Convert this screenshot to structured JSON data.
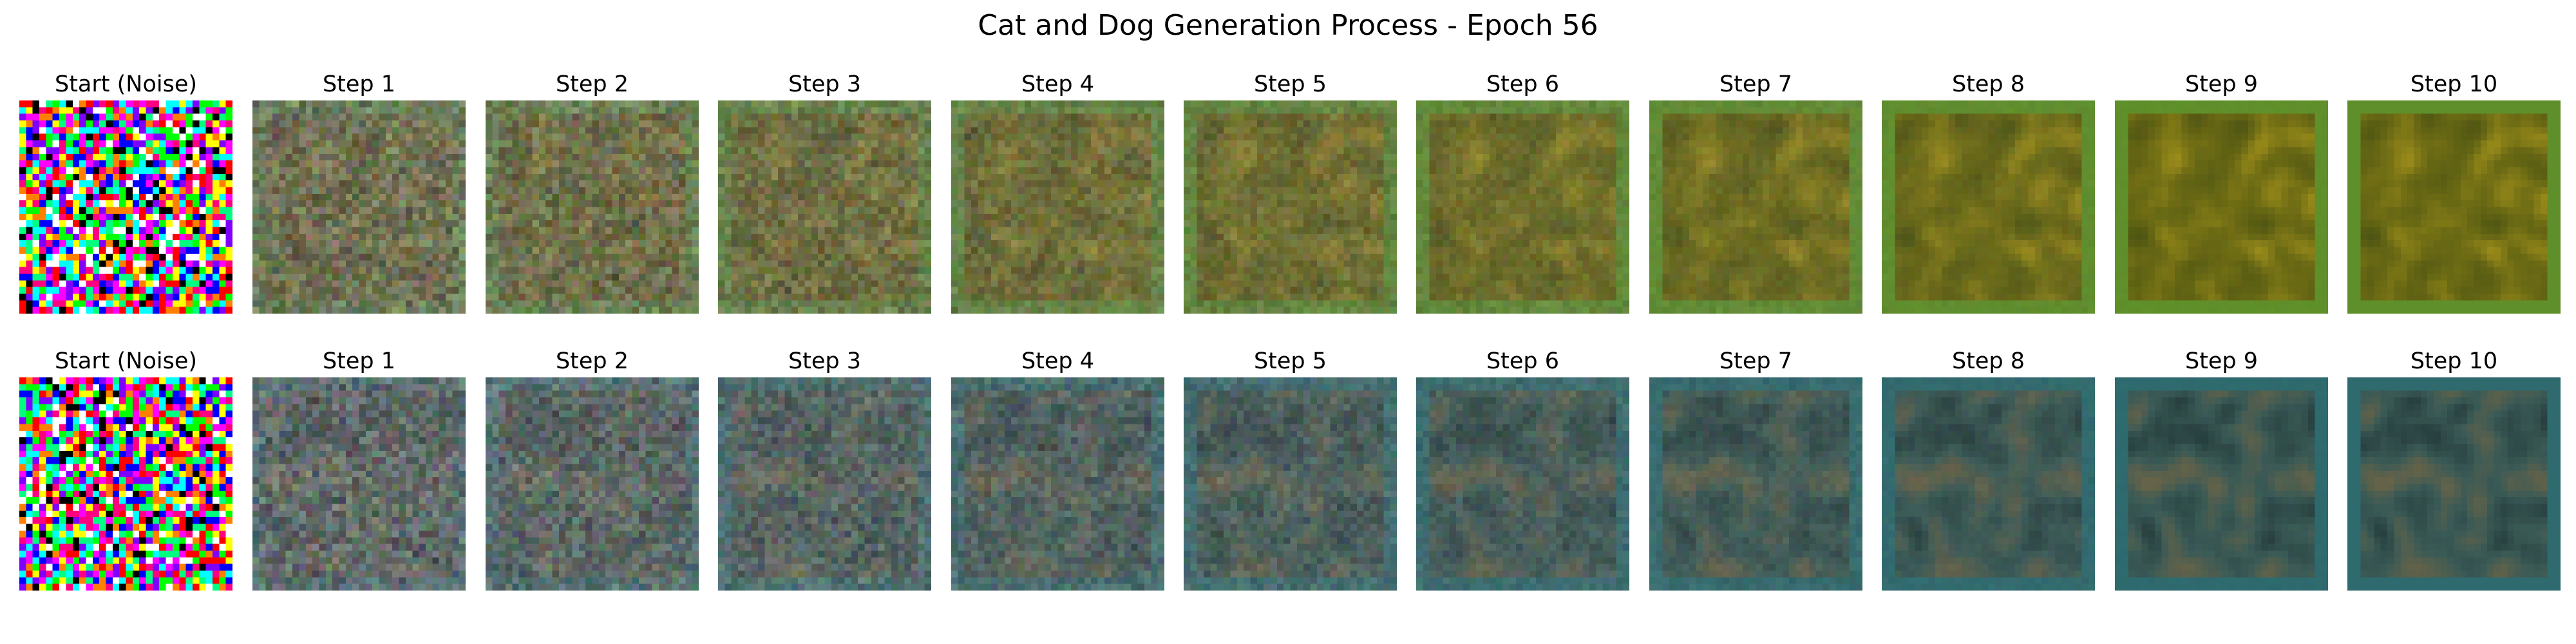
{
  "title": "Cat and Dog Generation Process - Epoch 56",
  "rows": [
    {
      "panels": [
        {
          "label": "Start (Noise)",
          "kind": "noise",
          "denoise": 0.0
        },
        {
          "label": "Step 1",
          "kind": "blend",
          "denoise": 0.1
        },
        {
          "label": "Step 2",
          "kind": "blend",
          "denoise": 0.2
        },
        {
          "label": "Step 3",
          "kind": "blend",
          "denoise": 0.3
        },
        {
          "label": "Step 4",
          "kind": "blend",
          "denoise": 0.4
        },
        {
          "label": "Step 5",
          "kind": "blend",
          "denoise": 0.5
        },
        {
          "label": "Step 6",
          "kind": "blend",
          "denoise": 0.6
        },
        {
          "label": "Step 7",
          "kind": "blend",
          "denoise": 0.7
        },
        {
          "label": "Step 8",
          "kind": "blend",
          "denoise": 0.8
        },
        {
          "label": "Step 9",
          "kind": "blend",
          "denoise": 0.9
        },
        {
          "label": "Step 10",
          "kind": "blend",
          "denoise": 1.0
        }
      ],
      "palette": {
        "dominant": "#6b6a14",
        "border": "#5f8f2a",
        "highlight": "#b8a01e",
        "shadow": "#3f4a12"
      }
    },
    {
      "panels": [
        {
          "label": "Start (Noise)",
          "kind": "noise",
          "denoise": 0.0
        },
        {
          "label": "Step 1",
          "kind": "blend",
          "denoise": 0.1
        },
        {
          "label": "Step 2",
          "kind": "blend",
          "denoise": 0.2
        },
        {
          "label": "Step 3",
          "kind": "blend",
          "denoise": 0.3
        },
        {
          "label": "Step 4",
          "kind": "blend",
          "denoise": 0.4
        },
        {
          "label": "Step 5",
          "kind": "blend",
          "denoise": 0.5
        },
        {
          "label": "Step 6",
          "kind": "blend",
          "denoise": 0.6
        },
        {
          "label": "Step 7",
          "kind": "blend",
          "denoise": 0.7
        },
        {
          "label": "Step 8",
          "kind": "blend",
          "denoise": 0.8
        },
        {
          "label": "Step 9",
          "kind": "blend",
          "denoise": 0.9
        },
        {
          "label": "Step 10",
          "kind": "blend",
          "denoise": 1.0
        }
      ],
      "palette": {
        "dominant": "#3a5a56",
        "border": "#2e6a6e",
        "highlight": "#8a6a3c",
        "shadow": "#182a2c"
      }
    }
  ]
}
